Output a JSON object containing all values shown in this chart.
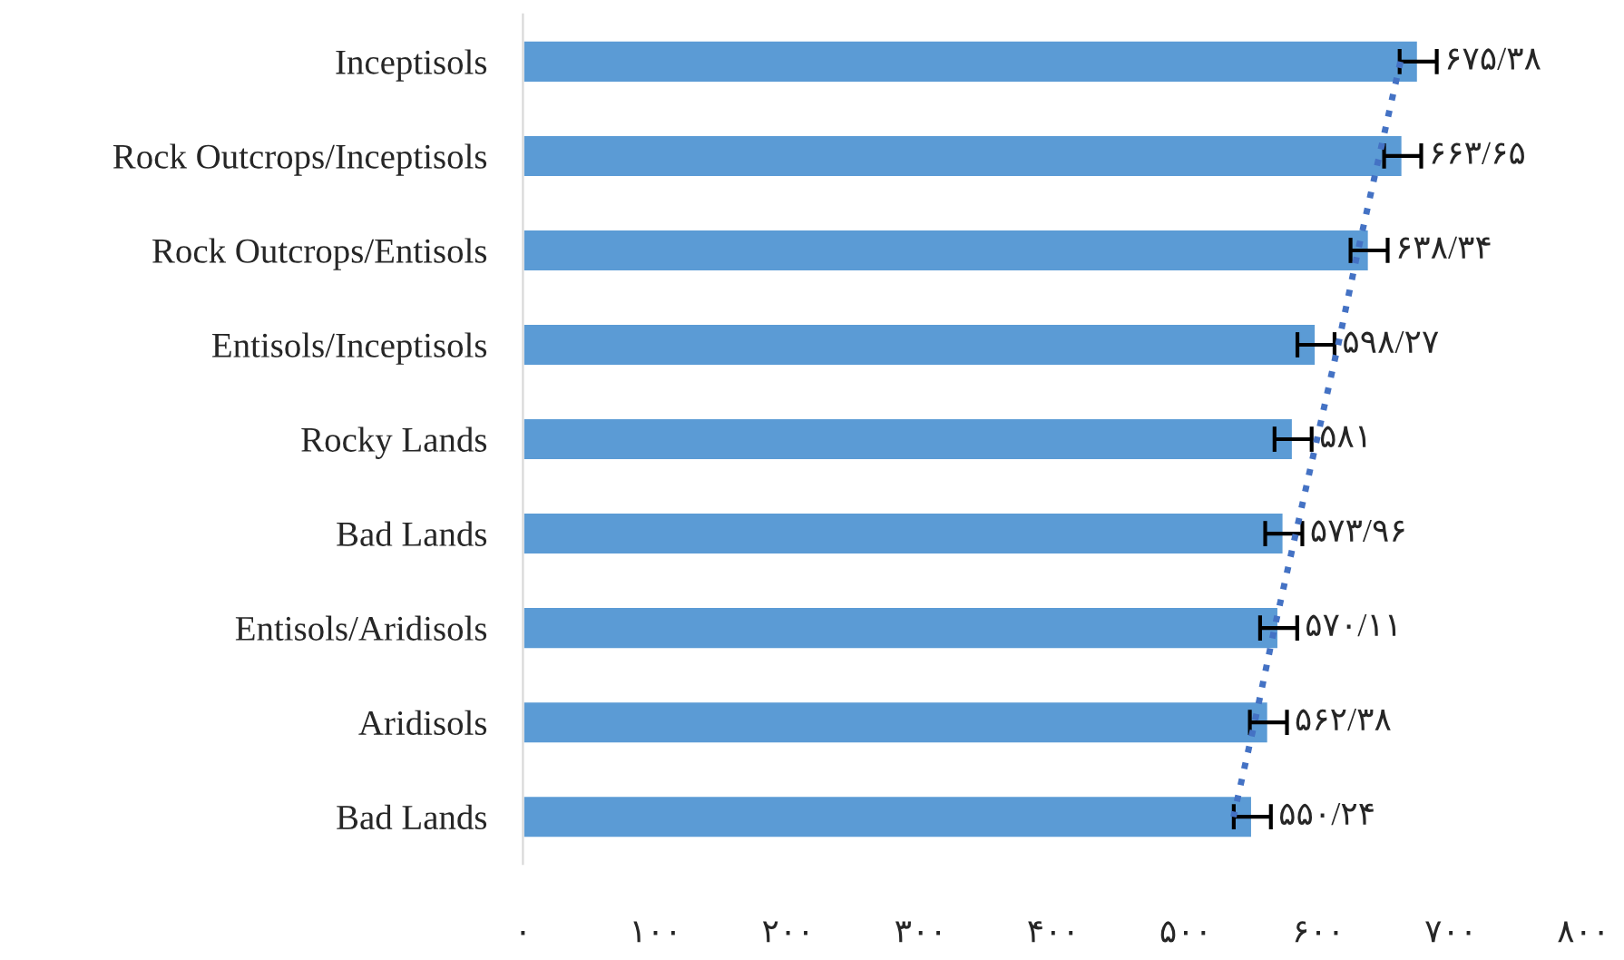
{
  "chart_data": {
    "type": "bar",
    "orientation": "horizontal",
    "categories": [
      "Inceptisols",
      "Rock Outcrops/Inceptisols",
      "Rock Outcrops/Entisols",
      "Entisols/Inceptisols",
      "Rocky Lands",
      "Bad Lands",
      "Entisols/Aridisols",
      "Aridisols",
      "Bad Lands"
    ],
    "series": [
      {
        "color": "#5b9bd5",
        "values": [
          675.38,
          663.65,
          638.34,
          598.27,
          581,
          573.96,
          570.11,
          562.38,
          550.24
        ],
        "errors": [
          14,
          14,
          14,
          14,
          14,
          14,
          14,
          14,
          14
        ],
        "value_labels": [
          "۶۷۵/۳۸",
          "۶۶۳/۶۵",
          "۶۳۸/۳۴",
          "۵۹۸/۲۷",
          "۵۸۱",
          "۵۷۳/۹۶",
          "۵۷۰/۱۱",
          "۵۶۲/۳۸",
          "۵۵۰/۲۴"
        ]
      },
      {
        "type": "line",
        "color": "#4472c4",
        "line_style": "dotted",
        "values": [
          662,
          646,
          630,
          615,
          599,
          583,
          567,
          552,
          536
        ]
      }
    ],
    "xlim": [
      0,
      800
    ],
    "xticks": [
      {
        "value": 0,
        "label": "۰"
      },
      {
        "value": 100,
        "label": "۱۰۰"
      },
      {
        "value": 200,
        "label": "۲۰۰"
      },
      {
        "value": 300,
        "label": "۳۰۰"
      },
      {
        "value": 400,
        "label": "۴۰۰"
      },
      {
        "value": 500,
        "label": "۵۰۰"
      },
      {
        "value": 600,
        "label": "۶۰۰"
      },
      {
        "value": 700,
        "label": "۷۰۰"
      },
      {
        "value": 800,
        "label": "۸۰۰"
      }
    ],
    "grid": false,
    "legend": false
  }
}
